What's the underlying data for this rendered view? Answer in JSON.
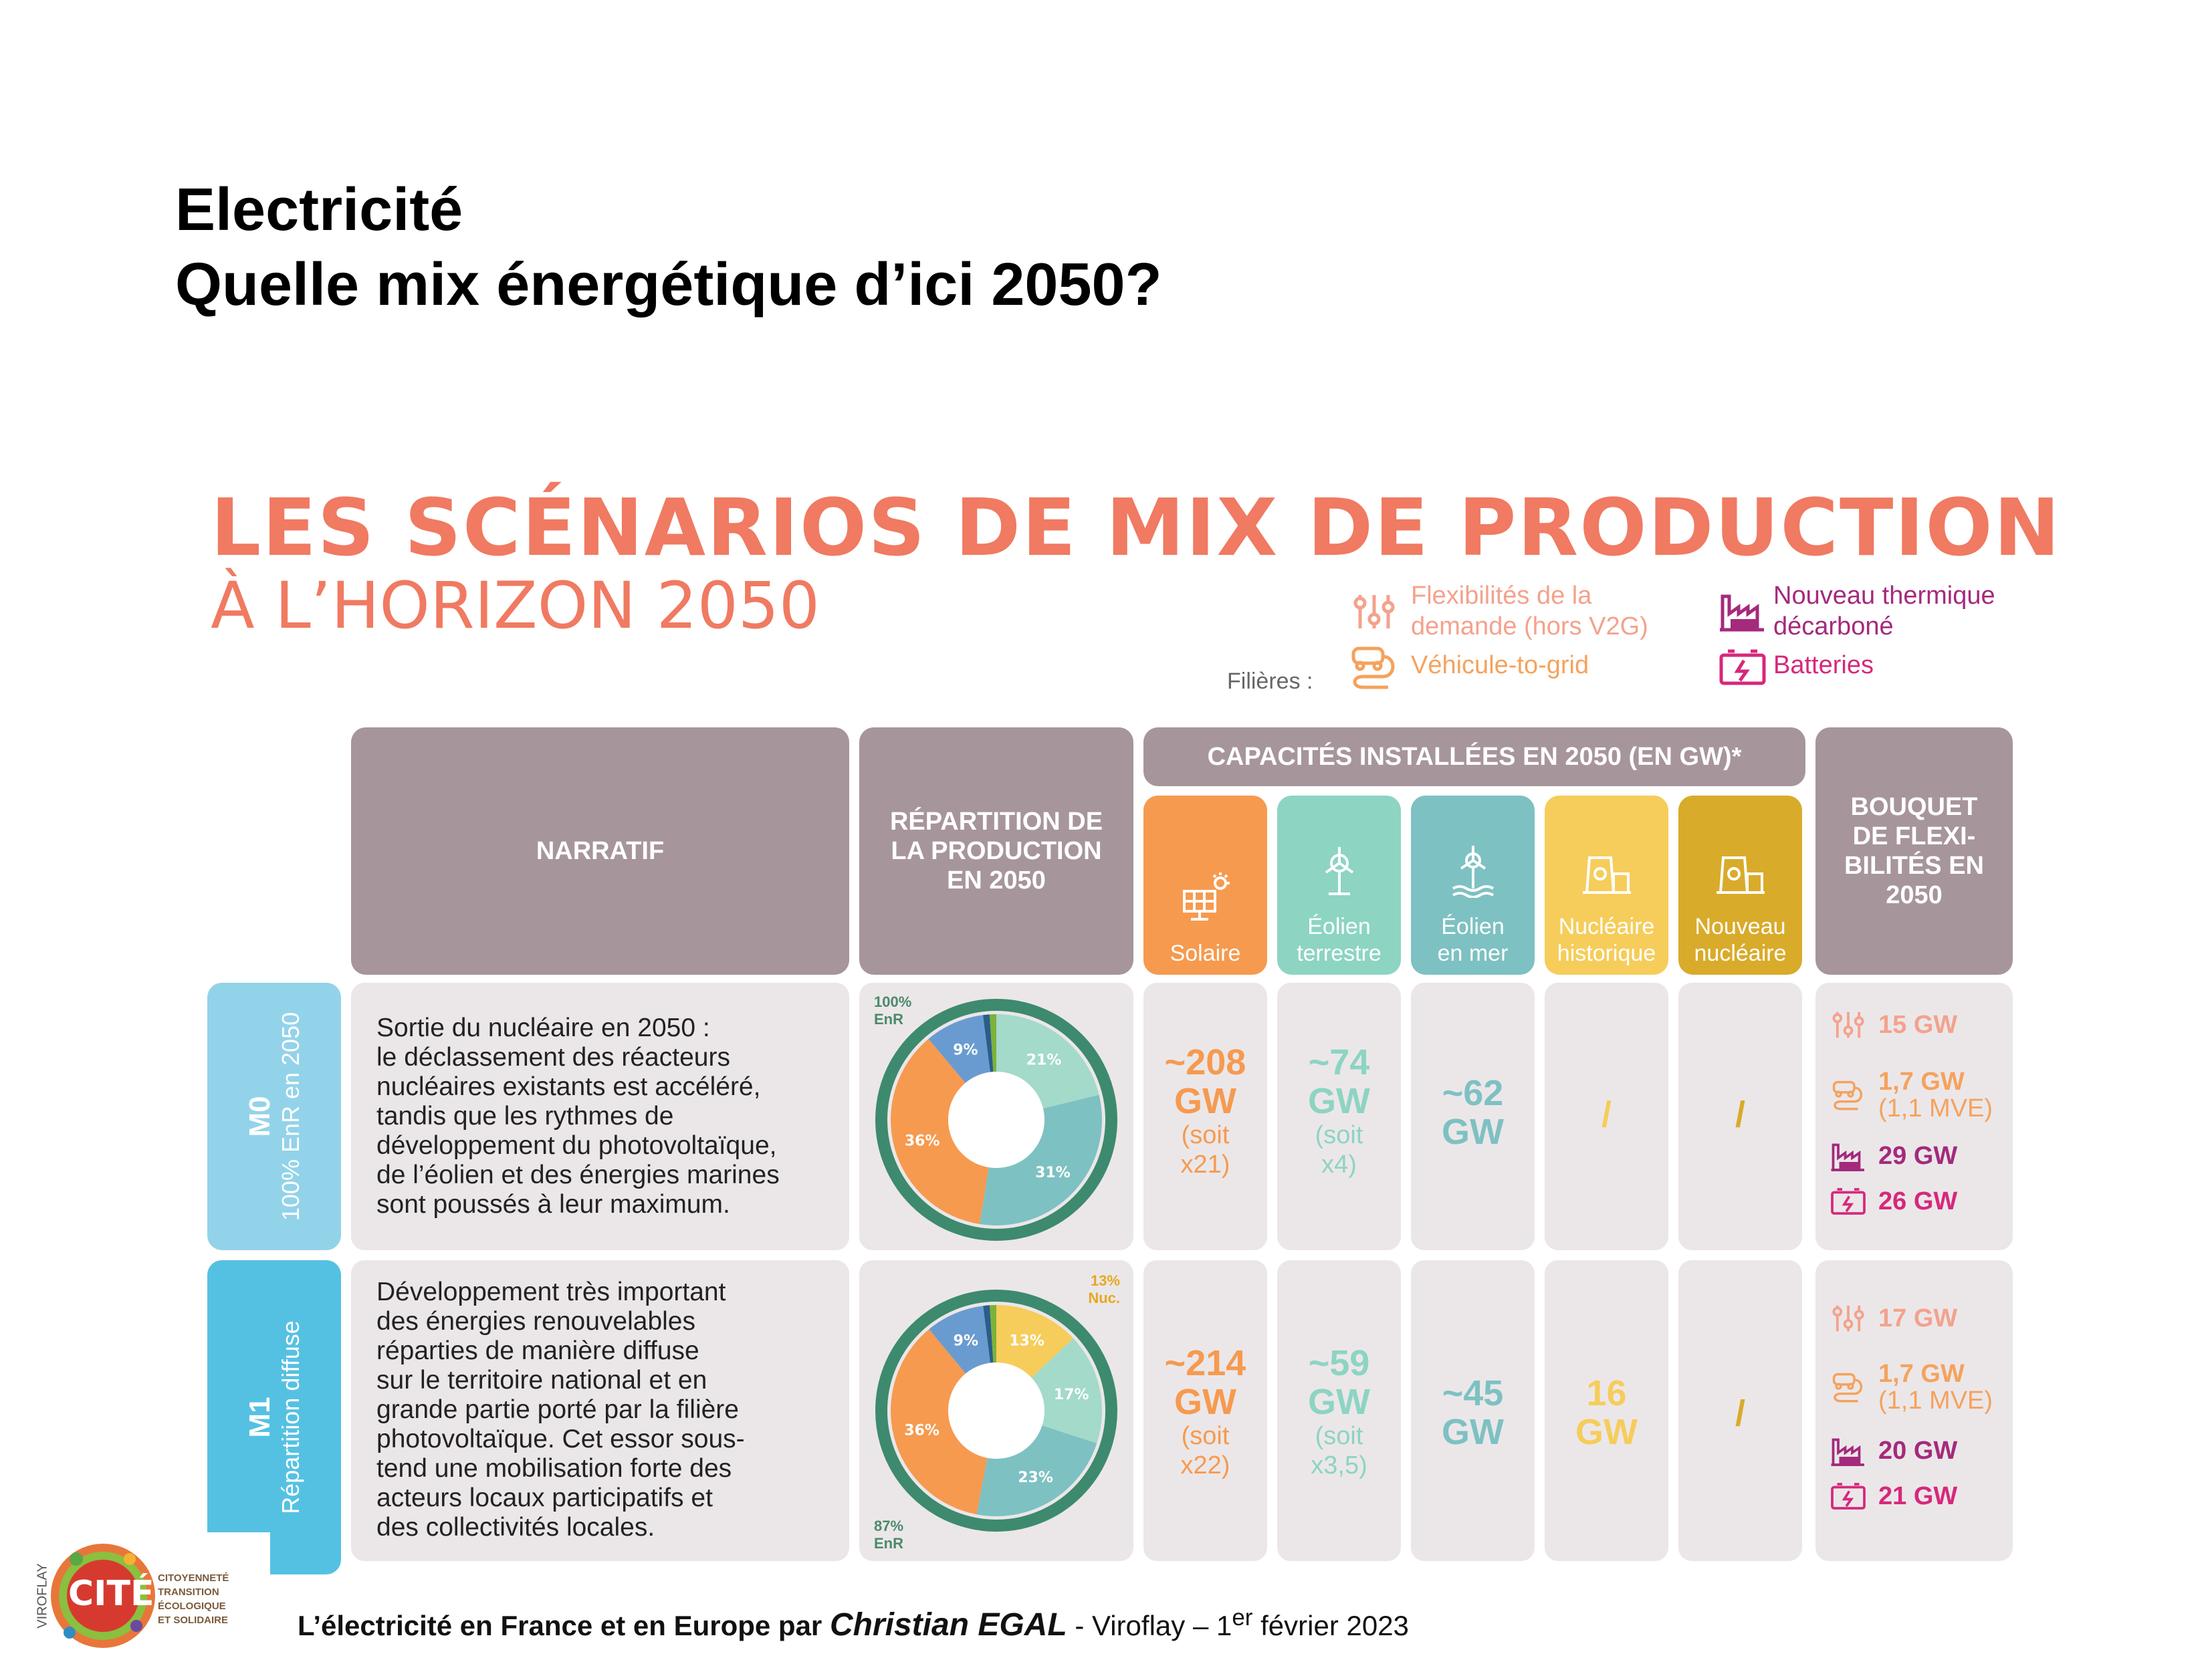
{
  "slide": {
    "title_line1": "Electricité",
    "title_line2": "Quelle mix énergétique d’ici 2050?"
  },
  "infographic": {
    "title": "LES SCÉNARIOS DE MIX DE PRODUCTION",
    "subtitle": "À L’HORIZON 2050",
    "legend": {
      "label": "Filières :",
      "items": [
        {
          "text": "Flexibilités de la demande (hors V2G)",
          "icon": "demand-flex-icon",
          "color": "#f4a28c"
        },
        {
          "text": "Véhicule-to-grid",
          "icon": "v2g-icon",
          "color": "#f5a25d"
        },
        {
          "text": "Nouveau thermique décarboné",
          "icon": "thermal-plant-icon",
          "color": "#a42a7c"
        },
        {
          "text": "Batteries",
          "icon": "battery-icon",
          "color": "#d6287b"
        }
      ]
    },
    "headers": {
      "narratif": "NARRATIF",
      "repartition": "RÉPARTITION DE LA PRODUCTION EN 2050",
      "capacites": "CAPACITÉS INSTALLÉES EN 2050 (EN GW)*",
      "bouquet": "BOUQUET DE FLEXI-BILITÉS EN 2050"
    },
    "columns": [
      {
        "label1": "Solaire",
        "label2": "",
        "color": "#f69a4f",
        "icon": "solar-panel-icon"
      },
      {
        "label1": "Éolien",
        "label2": "terrestre",
        "color": "#8dd4c3",
        "icon": "wind-turbine-icon"
      },
      {
        "label1": "Éolien",
        "label2": "en mer",
        "color": "#7ec1c2",
        "icon": "offshore-wind-icon"
      },
      {
        "label1": "Nucléaire",
        "label2": "historique",
        "color": "#f6cd5b",
        "icon": "nuclear-plant-icon"
      },
      {
        "label1": "Nouveau",
        "label2": "nucléaire",
        "color": "#d9ab2b",
        "icon": "new-nuclear-icon"
      }
    ],
    "scenarios": [
      {
        "code": "M0",
        "name": "100% EnR en 2050",
        "color": "#93d3e9",
        "narrative": [
          "Sortie du nucléaire en 2050 :",
          "le déclassement des réacteurs",
          "nucléaires existants est accéléré,",
          "tandis que les rythmes de",
          "développement du photovoltaïque,",
          "de l’éolien et des énergies marines",
          "sont poussés à leur maximum."
        ],
        "donut_top_label": "100% EnR",
        "donut_bottom_label": "",
        "donut": [
          {
            "pct": 21,
            "label": "21%",
            "color": "#a3dac9"
          },
          {
            "pct": 31,
            "label": "31%",
            "color": "#7ec1c2"
          },
          {
            "pct": 36,
            "label": "36%",
            "color": "#f69a4f"
          },
          {
            "pct": 9,
            "label": "9%",
            "color": "#6a9bd0"
          },
          {
            "pct": 1,
            "label": "",
            "color": "#2a5d8a"
          },
          {
            "pct": 1,
            "label": "",
            "color": "#7bb23a"
          }
        ],
        "capacities": [
          {
            "value": "~208",
            "unit": "GW",
            "note1": "(soit",
            "note2": "x21)"
          },
          {
            "value": "~74",
            "unit": "GW",
            "note1": "(soit",
            "note2": "x4)"
          },
          {
            "value": "~62",
            "unit": "GW",
            "note1": "",
            "note2": ""
          },
          {
            "value": "/",
            "unit": "",
            "note1": "",
            "note2": ""
          },
          {
            "value": "/",
            "unit": "",
            "note1": "",
            "note2": ""
          }
        ],
        "flex": [
          {
            "value": "15 GW",
            "sub": "",
            "color": "#f4a28c",
            "icon": "demand-flex-icon"
          },
          {
            "value": "1,7 GW",
            "sub": "(1,1 MVE)",
            "color": "#f5a25d",
            "icon": "v2g-icon"
          },
          {
            "value": "29 GW",
            "sub": "",
            "color": "#a42a7c",
            "icon": "thermal-plant-icon"
          },
          {
            "value": "26 GW",
            "sub": "",
            "color": "#d6287b",
            "icon": "battery-icon"
          }
        ]
      },
      {
        "code": "M1",
        "name": "Répartition diffuse",
        "color": "#55c1e2",
        "narrative": [
          "Développement très important",
          "des énergies renouvelables",
          "réparties de manière diffuse",
          "sur le territoire national et en",
          "grande partie porté par la filière",
          "photovoltaïque. Cet essor sous-",
          "tend une mobilisation forte des",
          "acteurs locaux participatifs et",
          "des collectivités locales."
        ],
        "donut_top_label": "13% Nuc.",
        "donut_bottom_label": "87% EnR",
        "donut": [
          {
            "pct": 13,
            "label": "13%",
            "color": "#f6cd5b"
          },
          {
            "pct": 17,
            "label": "17%",
            "color": "#a3dac9"
          },
          {
            "pct": 23,
            "label": "23%",
            "color": "#7ec1c2"
          },
          {
            "pct": 36,
            "label": "36%",
            "color": "#f69a4f"
          },
          {
            "pct": 9,
            "label": "9%",
            "color": "#6a9bd0"
          },
          {
            "pct": 1,
            "label": "",
            "color": "#2a5d8a"
          },
          {
            "pct": 1,
            "label": "",
            "color": "#7bb23a"
          }
        ],
        "capacities": [
          {
            "value": "~214",
            "unit": "GW",
            "note1": "(soit",
            "note2": "x22)"
          },
          {
            "value": "~59",
            "unit": "GW",
            "note1": "(soit",
            "note2": "x3,5)"
          },
          {
            "value": "~45",
            "unit": "GW",
            "note1": "",
            "note2": ""
          },
          {
            "value": "16",
            "unit": "GW",
            "note1": "",
            "note2": ""
          },
          {
            "value": "/",
            "unit": "",
            "note1": "",
            "note2": ""
          }
        ],
        "flex": [
          {
            "value": "17 GW",
            "sub": "",
            "color": "#f4a28c",
            "icon": "demand-flex-icon"
          },
          {
            "value": "1,7 GW",
            "sub": "(1,1 MVE)",
            "color": "#f5a25d",
            "icon": "v2g-icon"
          },
          {
            "value": "20 GW",
            "sub": "",
            "color": "#a42a7c",
            "icon": "thermal-plant-icon"
          },
          {
            "value": "21 GW",
            "sub": "",
            "color": "#d6287b",
            "icon": "battery-icon"
          }
        ]
      }
    ]
  },
  "footer": {
    "prefix": "L’électricité en France et en Europe par ",
    "author": "Christian EGAL",
    "place": " - Viroflay – 1",
    "sup": "er",
    "date": " février 2023"
  },
  "logo": {
    "side_text": "VIROFLAY",
    "main_text": "CITÉS",
    "tag1": "CITOYENNETÉ",
    "tag2": "TRANSITION ÉCOLOGIQUE",
    "tag3": "ET SOLIDAIRE"
  }
}
